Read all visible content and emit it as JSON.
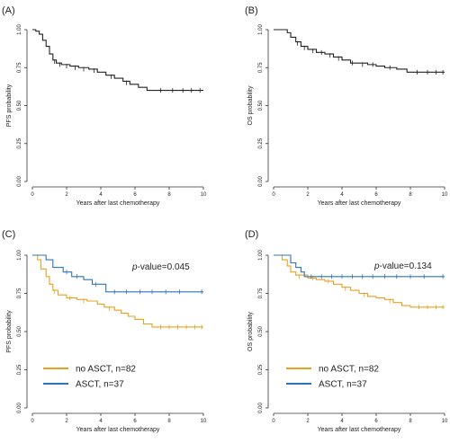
{
  "colors": {
    "bw": "#222222",
    "no_asct": "#e8a020",
    "asct": "#2e74b5",
    "axis": "#333333"
  },
  "chart_data": [
    {
      "type": "line",
      "panel_label": "(A)",
      "xlabel": "Years after last chemotherapy",
      "ylabel": "PFS probability",
      "xlim": [
        0,
        10
      ],
      "ylim": [
        0,
        1
      ],
      "x_ticks": [
        "0",
        "2",
        "4",
        "6",
        "8",
        "10"
      ],
      "y_ticks": [
        "0.00",
        "0.25",
        "0.50",
        "0.75",
        "1.00"
      ],
      "series": [
        {
          "color": "bw",
          "points": [
            [
              0,
              1
            ],
            [
              0.2,
              0.99
            ],
            [
              0.4,
              0.97
            ],
            [
              0.6,
              0.93
            ],
            [
              0.8,
              0.89
            ],
            [
              1.0,
              0.84
            ],
            [
              1.2,
              0.8
            ],
            [
              1.4,
              0.78
            ],
            [
              1.7,
              0.77
            ],
            [
              2.2,
              0.76
            ],
            [
              2.7,
              0.75
            ],
            [
              3.3,
              0.74
            ],
            [
              3.8,
              0.72
            ],
            [
              4.3,
              0.7
            ],
            [
              4.8,
              0.68
            ],
            [
              5.3,
              0.66
            ],
            [
              5.7,
              0.64
            ],
            [
              6.2,
              0.62
            ],
            [
              6.7,
              0.6
            ],
            [
              10,
              0.6
            ]
          ],
          "censored": [
            [
              1.3,
              0.79
            ],
            [
              1.6,
              0.77
            ],
            [
              2.0,
              0.76
            ],
            [
              2.5,
              0.75
            ],
            [
              3.0,
              0.74
            ],
            [
              3.6,
              0.73
            ],
            [
              4.6,
              0.69
            ],
            [
              5.5,
              0.65
            ],
            [
              7.5,
              0.6
            ],
            [
              8.2,
              0.6
            ],
            [
              8.8,
              0.6
            ],
            [
              9.3,
              0.6
            ],
            [
              9.8,
              0.6
            ]
          ]
        }
      ]
    },
    {
      "type": "line",
      "panel_label": "(B)",
      "xlabel": "Years after last chemotherapy",
      "ylabel": "OS probability",
      "xlim": [
        0,
        10
      ],
      "ylim": [
        0,
        1
      ],
      "x_ticks": [
        "0",
        "2",
        "4",
        "6",
        "8",
        "10"
      ],
      "y_ticks": [
        "0.00",
        "0.25",
        "0.50",
        "0.75",
        "1.00"
      ],
      "series": [
        {
          "color": "bw",
          "points": [
            [
              0,
              1
            ],
            [
              0.5,
              1.0
            ],
            [
              0.8,
              0.98
            ],
            [
              1.0,
              0.95
            ],
            [
              1.3,
              0.92
            ],
            [
              1.6,
              0.89
            ],
            [
              2.0,
              0.87
            ],
            [
              2.5,
              0.85
            ],
            [
              3.0,
              0.84
            ],
            [
              3.5,
              0.82
            ],
            [
              4.0,
              0.8
            ],
            [
              4.5,
              0.78
            ],
            [
              5.5,
              0.77
            ],
            [
              6.0,
              0.76
            ],
            [
              6.5,
              0.75
            ],
            [
              7.2,
              0.74
            ],
            [
              7.8,
              0.72
            ],
            [
              10,
              0.72
            ]
          ],
          "censored": [
            [
              1.4,
              0.91
            ],
            [
              1.8,
              0.88
            ],
            [
              2.3,
              0.86
            ],
            [
              2.8,
              0.85
            ],
            [
              3.3,
              0.83
            ],
            [
              3.8,
              0.81
            ],
            [
              4.6,
              0.78
            ],
            [
              5.2,
              0.77
            ],
            [
              5.8,
              0.77
            ],
            [
              6.8,
              0.75
            ],
            [
              8.4,
              0.72
            ],
            [
              9.0,
              0.72
            ],
            [
              9.5,
              0.72
            ],
            [
              9.9,
              0.72
            ]
          ]
        }
      ]
    },
    {
      "type": "line",
      "panel_label": "(C)",
      "xlabel": "Years after last chemotherapy",
      "ylabel": "PFS probability",
      "xlim": [
        0,
        10
      ],
      "ylim": [
        0,
        1
      ],
      "x_ticks": [
        "0",
        "2",
        "4",
        "6",
        "8",
        "10"
      ],
      "y_ticks": [
        "0.00",
        "0.25",
        "0.50",
        "0.75",
        "1.00"
      ],
      "p_label": "p",
      "p_value_text": "-value=0.045",
      "series": [
        {
          "name": "no ASCT, n=82",
          "color": "no_asct",
          "points": [
            [
              0,
              1
            ],
            [
              0.3,
              0.97
            ],
            [
              0.5,
              0.91
            ],
            [
              0.8,
              0.86
            ],
            [
              1.0,
              0.81
            ],
            [
              1.2,
              0.77
            ],
            [
              1.5,
              0.74
            ],
            [
              2.0,
              0.72
            ],
            [
              2.6,
              0.71
            ],
            [
              3.2,
              0.7
            ],
            [
              3.8,
              0.68
            ],
            [
              4.2,
              0.66
            ],
            [
              4.8,
              0.64
            ],
            [
              5.2,
              0.62
            ],
            [
              5.6,
              0.6
            ],
            [
              6.0,
              0.58
            ],
            [
              6.5,
              0.55
            ],
            [
              7.0,
              0.53
            ],
            [
              10,
              0.53
            ]
          ],
          "censored": [
            [
              1.3,
              0.76
            ],
            [
              2.2,
              0.72
            ],
            [
              3.0,
              0.7
            ],
            [
              4.5,
              0.65
            ],
            [
              7.5,
              0.53
            ],
            [
              8.0,
              0.53
            ],
            [
              8.5,
              0.53
            ],
            [
              9.0,
              0.53
            ],
            [
              9.5,
              0.53
            ],
            [
              9.9,
              0.53
            ]
          ]
        },
        {
          "name": "ASCT, n=37",
          "color": "asct",
          "points": [
            [
              0,
              1
            ],
            [
              0.8,
              0.97
            ],
            [
              1.2,
              0.92
            ],
            [
              1.8,
              0.89
            ],
            [
              2.3,
              0.86
            ],
            [
              3.0,
              0.84
            ],
            [
              3.5,
              0.81
            ],
            [
              4.3,
              0.76
            ],
            [
              10,
              0.76
            ]
          ],
          "censored": [
            [
              2.0,
              0.89
            ],
            [
              2.6,
              0.86
            ],
            [
              3.7,
              0.81
            ],
            [
              4.8,
              0.76
            ],
            [
              5.5,
              0.76
            ],
            [
              6.3,
              0.76
            ],
            [
              7.0,
              0.76
            ],
            [
              7.8,
              0.76
            ],
            [
              8.6,
              0.76
            ],
            [
              9.9,
              0.76
            ]
          ]
        }
      ],
      "legend_position": "bottom-left"
    },
    {
      "type": "line",
      "panel_label": "(D)",
      "xlabel": "Years after last chemotherapy",
      "ylabel": "OS probability",
      "xlim": [
        0,
        10
      ],
      "ylim": [
        0,
        1
      ],
      "x_ticks": [
        "0",
        "2",
        "4",
        "6",
        "8",
        "10"
      ],
      "y_ticks": [
        "0.00",
        "0.25",
        "0.50",
        "0.75",
        "1.00"
      ],
      "p_label": "p",
      "p_value_text": "-value=0.134",
      "series": [
        {
          "name": "no ASCT, n=82",
          "color": "no_asct",
          "points": [
            [
              0,
              1
            ],
            [
              0.5,
              0.97
            ],
            [
              0.8,
              0.93
            ],
            [
              1.0,
              0.89
            ],
            [
              1.3,
              0.87
            ],
            [
              2.0,
              0.85
            ],
            [
              2.5,
              0.84
            ],
            [
              3.0,
              0.83
            ],
            [
              3.5,
              0.81
            ],
            [
              4.0,
              0.79
            ],
            [
              4.5,
              0.77
            ],
            [
              5.0,
              0.75
            ],
            [
              5.5,
              0.73
            ],
            [
              6.0,
              0.72
            ],
            [
              6.5,
              0.71
            ],
            [
              7.0,
              0.69
            ],
            [
              7.5,
              0.67
            ],
            [
              8.0,
              0.66
            ],
            [
              10,
              0.66
            ]
          ],
          "censored": [
            [
              1.5,
              0.86
            ],
            [
              2.3,
              0.85
            ],
            [
              3.2,
              0.83
            ],
            [
              4.2,
              0.78
            ],
            [
              5.3,
              0.74
            ],
            [
              6.8,
              0.7
            ],
            [
              8.5,
              0.66
            ],
            [
              9.0,
              0.66
            ],
            [
              9.5,
              0.66
            ],
            [
              9.9,
              0.66
            ]
          ]
        },
        {
          "name": "ASCT, n=37",
          "color": "asct",
          "points": [
            [
              0,
              1
            ],
            [
              0.8,
              1.0
            ],
            [
              1.0,
              0.95
            ],
            [
              1.3,
              0.92
            ],
            [
              1.6,
              0.89
            ],
            [
              1.8,
              0.86
            ],
            [
              10,
              0.86
            ]
          ],
          "censored": [
            [
              2.2,
              0.86
            ],
            [
              2.8,
              0.86
            ],
            [
              3.4,
              0.86
            ],
            [
              4.0,
              0.86
            ],
            [
              4.6,
              0.86
            ],
            [
              5.2,
              0.86
            ],
            [
              5.8,
              0.86
            ],
            [
              6.5,
              0.86
            ],
            [
              7.2,
              0.86
            ],
            [
              8.0,
              0.86
            ],
            [
              8.8,
              0.86
            ],
            [
              9.9,
              0.86
            ]
          ]
        }
      ],
      "legend_position": "bottom-left"
    }
  ]
}
